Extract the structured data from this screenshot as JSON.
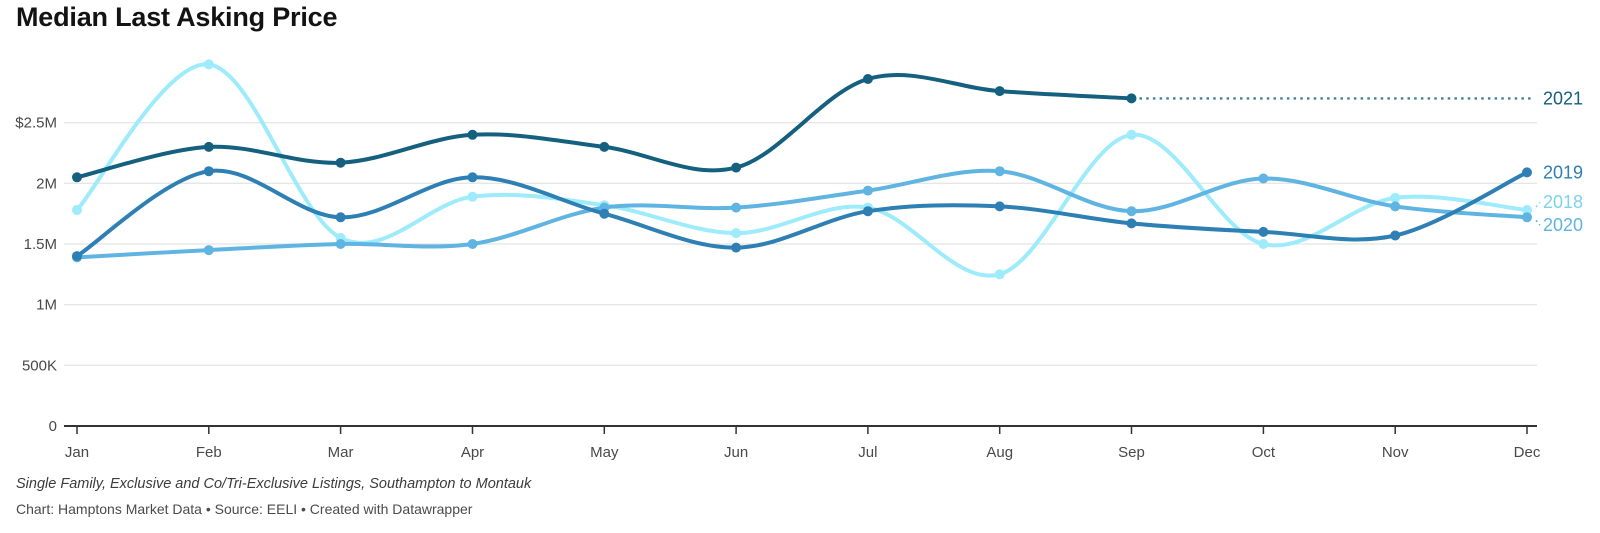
{
  "title": "Median Last Asking Price",
  "footnote": "Single Family, Exclusive and Co/Tri-Exclusive Listings, Southampton to Montauk",
  "credit": "Chart: Hamptons Market Data • Source: EELI • Created with Datawrapper",
  "chart_data": {
    "type": "line",
    "title": "Median Last Asking Price",
    "x": [
      "Jan",
      "Feb",
      "Mar",
      "Apr",
      "May",
      "Jun",
      "Jul",
      "Aug",
      "Sep",
      "Oct",
      "Nov",
      "Dec"
    ],
    "unit": "USD",
    "values_in": "millions USD",
    "ylim": [
      0,
      3.05
    ],
    "grid": "horizontal",
    "legend_position": "right-edge-line-labels",
    "y_ticks": [
      {
        "label": "$2.5M",
        "value": 2.5
      },
      {
        "label": "2M",
        "value": 2.0
      },
      {
        "label": "1.5M",
        "value": 1.5
      },
      {
        "label": "1M",
        "value": 1.0
      },
      {
        "label": "500K",
        "value": 0.5
      },
      {
        "label": "0",
        "value": 0
      }
    ],
    "series": [
      {
        "name": "2018",
        "color": "#9debfb",
        "label_color": "#7fd3e6",
        "values": [
          1.78,
          2.98,
          1.55,
          1.89,
          1.82,
          1.59,
          1.8,
          1.25,
          2.4,
          1.5,
          1.88,
          1.78
        ]
      },
      {
        "name": "2020",
        "color": "#5fb4e1",
        "label_color": "#5fb4e1",
        "values": [
          1.39,
          1.45,
          1.5,
          1.5,
          1.8,
          1.8,
          1.94,
          2.1,
          1.77,
          2.04,
          1.81,
          1.72
        ]
      },
      {
        "name": "2019",
        "color": "#2e7fb3",
        "label_color": "#2e7fb3",
        "values": [
          1.4,
          2.1,
          1.72,
          2.05,
          1.75,
          1.47,
          1.77,
          1.81,
          1.67,
          1.6,
          1.57,
          2.09
        ]
      },
      {
        "name": "2021",
        "color": "#15607f",
        "label_color": "#15607f",
        "projection_to_right": true,
        "values": [
          2.05,
          2.3,
          2.17,
          2.4,
          2.3,
          2.13,
          2.86,
          2.76,
          2.7,
          null,
          null,
          null
        ]
      }
    ],
    "axis_color": "#333333",
    "gridline_color": "#dddddd",
    "tick_label_color": "#494949"
  }
}
